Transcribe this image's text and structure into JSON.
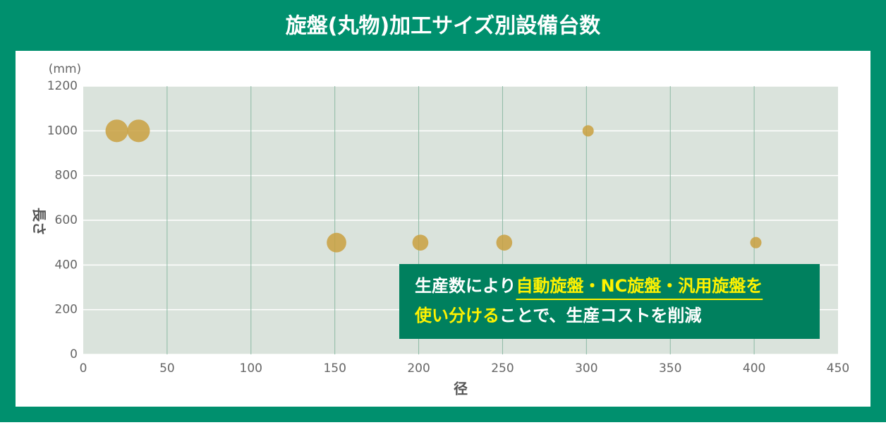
{
  "chart_data": {
    "type": "scatter",
    "title": "旋盤(丸物)加工サイズ別設備台数",
    "x_label": "径",
    "y_label": "長さ",
    "y_unit": "(mm)",
    "x": [
      20,
      33,
      151,
      201,
      251,
      301,
      401
    ],
    "y": [
      1000,
      1000,
      500,
      500,
      500,
      1000,
      500
    ],
    "sizes": [
      4,
      4,
      3,
      2,
      2,
      1,
      1
    ],
    "color": "#c9a040",
    "xlim": [
      0,
      450
    ],
    "ylim": [
      0,
      1200
    ],
    "xticks": [
      0,
      50,
      100,
      150,
      200,
      250,
      300,
      350,
      400,
      450
    ],
    "yticks": [
      0,
      200,
      400,
      600,
      800,
      1000,
      1200
    ],
    "grid": true,
    "annotation": [
      [
        "生産数により",
        "自動旋盤・NC旋盤・汎用旋盤を"
      ],
      [
        "使い分ける",
        "ことで、生産コストを削減"
      ]
    ],
    "annotation_highlight_color": "#fff200"
  }
}
